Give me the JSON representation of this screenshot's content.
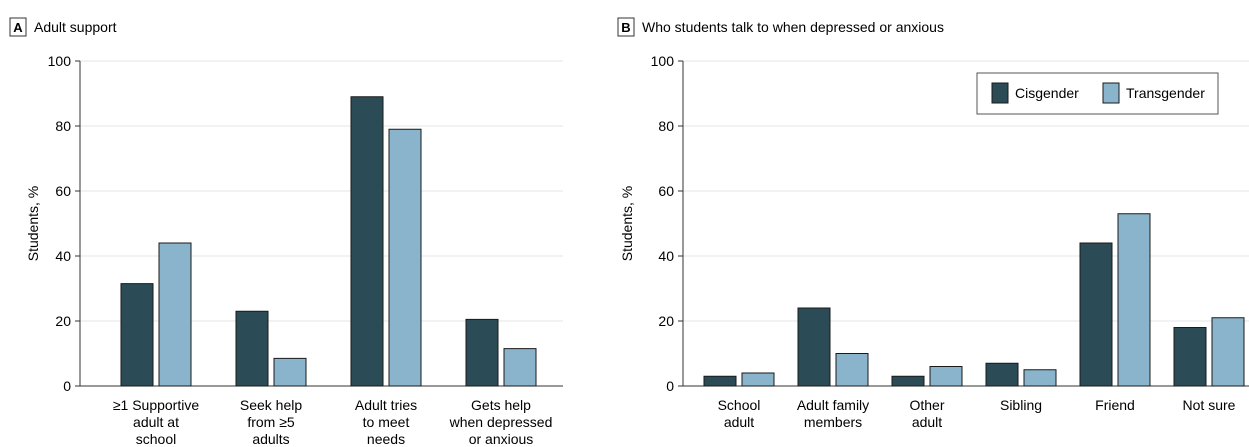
{
  "colors": {
    "cisgender": "#2b4c57",
    "transgender": "#8ab4cc",
    "axis": "#333333",
    "grid": "#e4e4e4",
    "bar_stroke": "#1a1a1a"
  },
  "legend": {
    "placement": "top-right of panel B",
    "entries": [
      "Cisgender",
      "Transgender"
    ]
  },
  "chart_data": [
    {
      "panel": "A",
      "type": "bar",
      "title": "Adult support",
      "ylabel": "Students, %",
      "xlabel": "",
      "ylim": [
        0,
        100
      ],
      "yticks": [
        0,
        20,
        40,
        60,
        80,
        100
      ],
      "grid": true,
      "categories": [
        [
          "≥1 Supportive",
          "adult at",
          "school"
        ],
        [
          "Seek help",
          "from ≥5",
          "adults"
        ],
        [
          "Adult tries",
          "to meet",
          "needs"
        ],
        [
          "Gets help",
          "when depressed",
          "or anxious"
        ]
      ],
      "series": [
        {
          "name": "Cisgender",
          "values": [
            31.5,
            23,
            89,
            20.5
          ]
        },
        {
          "name": "Transgender",
          "values": [
            44,
            8.5,
            79,
            11.5
          ]
        }
      ]
    },
    {
      "panel": "B",
      "type": "bar",
      "title": "Who students talk to when depressed or anxious",
      "ylabel": "Students, %",
      "xlabel": "",
      "ylim": [
        0,
        100
      ],
      "yticks": [
        0,
        20,
        40,
        60,
        80,
        100
      ],
      "grid": true,
      "categories": [
        [
          "School",
          "adult"
        ],
        [
          "Adult family",
          "members"
        ],
        [
          "Other",
          "adult"
        ],
        [
          "Sibling"
        ],
        [
          "Friend"
        ],
        [
          "Not sure"
        ]
      ],
      "series": [
        {
          "name": "Cisgender",
          "values": [
            3,
            24,
            3,
            7,
            44,
            18
          ]
        },
        {
          "name": "Transgender",
          "values": [
            4,
            10,
            6,
            5,
            53,
            21
          ]
        }
      ]
    }
  ]
}
